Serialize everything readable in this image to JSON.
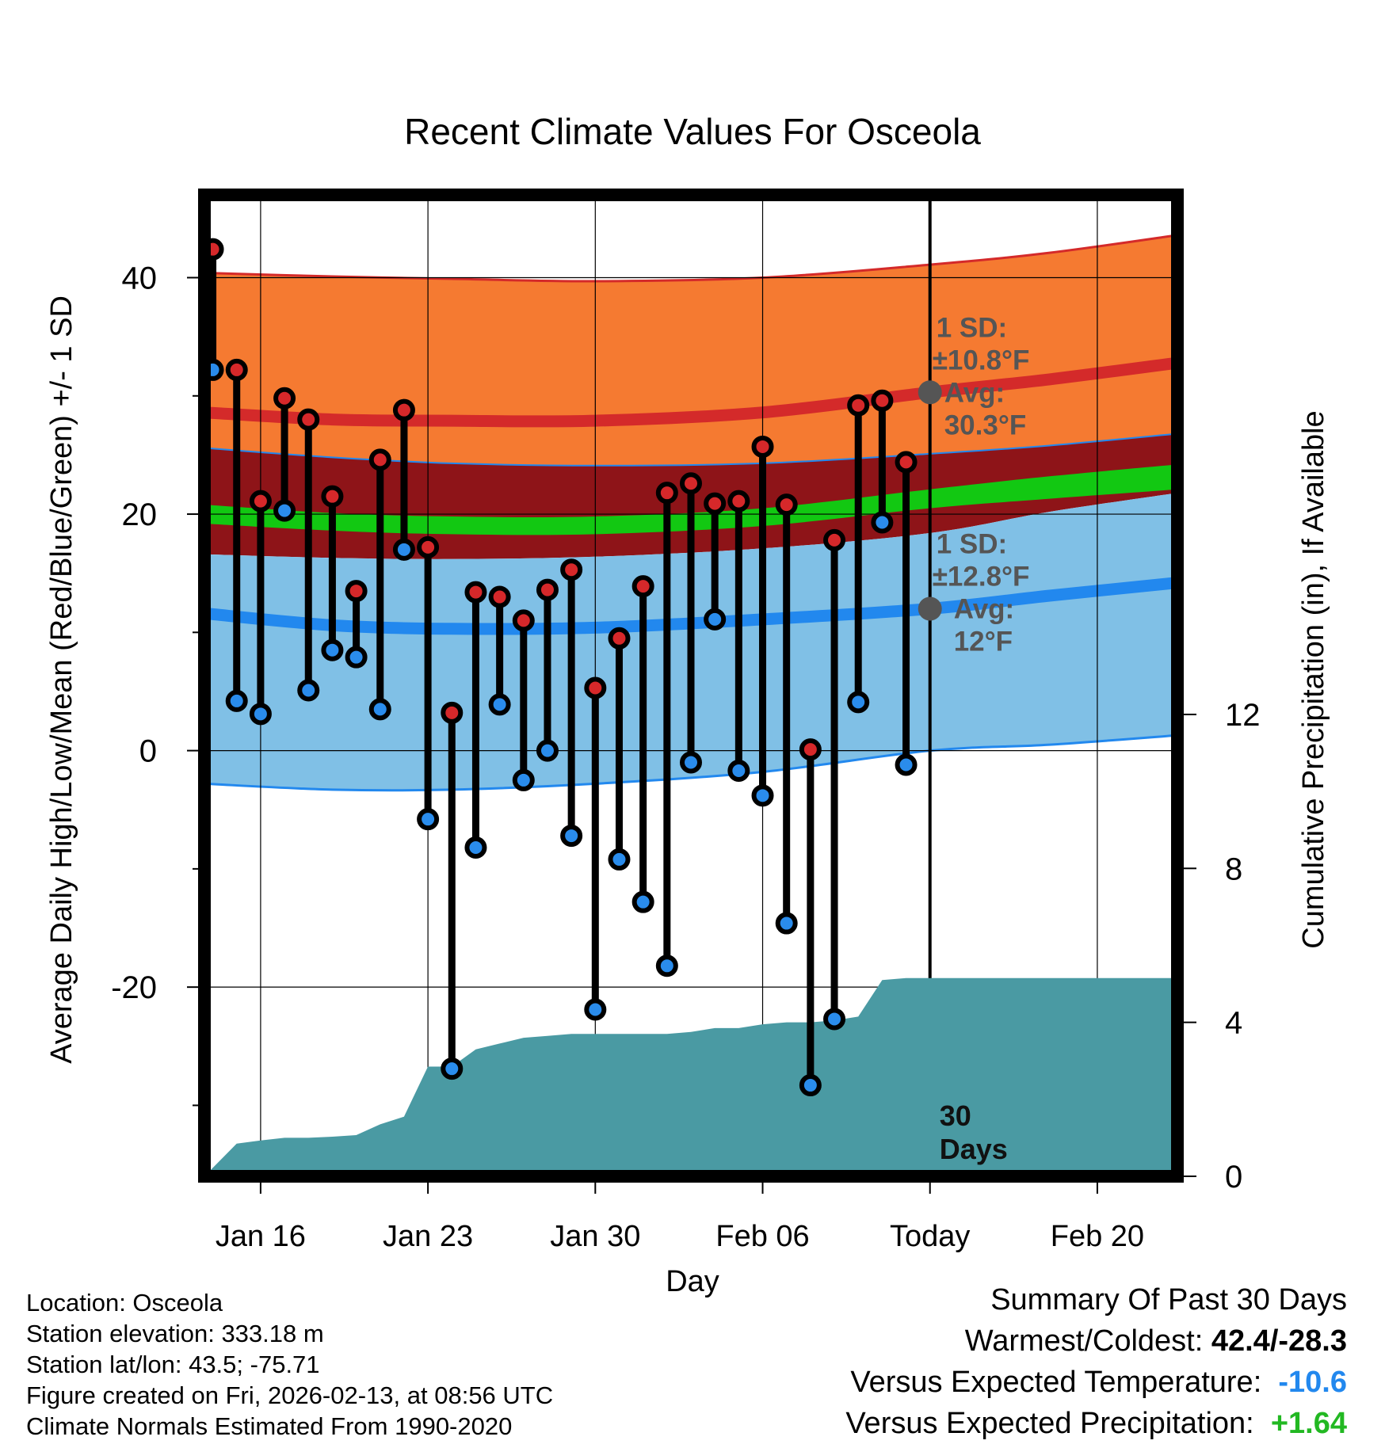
{
  "chart_data": {
    "type": "line",
    "title": "Recent Climate Values For Osceola",
    "xlabel": "Day",
    "ylabel": "Average Daily High/Low/Mean (Red/Blue/Green) +/- 1 SD",
    "y2label": "Cumulative Precipitation (in), If Available",
    "xlim": [
      -2.35,
      38.35
    ],
    "ylim": [
      -36,
      47
    ],
    "y2lim": [
      0,
      25.5
    ],
    "x_ticks": [
      {
        "x": 0,
        "label": "Jan 16"
      },
      {
        "x": 7,
        "label": "Jan 23"
      },
      {
        "x": 14,
        "label": "Jan 30"
      },
      {
        "x": 21,
        "label": "Feb 06"
      },
      {
        "x": 28,
        "label": "Today"
      },
      {
        "x": 35,
        "label": "Feb 20"
      }
    ],
    "y_ticks": [
      -20,
      0,
      20,
      40
    ],
    "y_minor_ticks": [
      -30,
      -10,
      10,
      30
    ],
    "y2_ticks": [
      0,
      4,
      8,
      12
    ],
    "today_x": 28,
    "today_label": [
      "30",
      "Days"
    ],
    "normals_x": [
      -2.35,
      3,
      8,
      14,
      21,
      28,
      33,
      38.35
    ],
    "normal_high_plus_sd": [
      40.4,
      40.1,
      39.9,
      39.7,
      40.0,
      41.1,
      42.1,
      43.6
    ],
    "normal_high": [
      28.6,
      28.0,
      27.9,
      27.9,
      28.6,
      30.3,
      31.4,
      32.8
    ],
    "normal_high_minus_sd": [
      25.6,
      24.8,
      24.3,
      24.1,
      24.3,
      25.1,
      25.8,
      26.8
    ],
    "normal_mean_upper": [
      20.8,
      20.1,
      19.8,
      19.8,
      20.5,
      22.1,
      23.2,
      24.2
    ],
    "normal_mean_lower": [
      19.2,
      18.6,
      18.3,
      18.3,
      19.0,
      20.5,
      21.3,
      22.1
    ],
    "normal_low_plus_sd": [
      16.6,
      16.3,
      16.2,
      16.4,
      17.1,
      18.4,
      20.2,
      21.8
    ],
    "normal_low": [
      11.6,
      10.6,
      10.3,
      10.4,
      11.1,
      12.0,
      13.1,
      14.2
    ],
    "normal_low_minus_sd": [
      -2.8,
      -3.3,
      -3.3,
      -2.8,
      -1.8,
      0.0,
      0.5,
      1.3
    ],
    "daily": {
      "x": [
        -2,
        -1,
        0,
        1,
        2,
        3,
        4,
        5,
        6,
        7,
        8,
        9,
        10,
        11,
        12,
        13,
        14,
        15,
        16,
        17,
        18,
        19,
        20,
        21,
        22,
        23,
        24,
        25,
        26,
        27
      ],
      "high": [
        42.4,
        32.2,
        21.1,
        29.8,
        28.0,
        21.5,
        13.5,
        24.6,
        28.8,
        17.2,
        3.2,
        13.4,
        13.0,
        11.0,
        13.6,
        15.3,
        5.3,
        9.5,
        13.9,
        21.8,
        22.6,
        20.9,
        21.1,
        25.7,
        20.8,
        0.1,
        17.8,
        29.2,
        29.6,
        24.4
      ],
      "low": [
        32.2,
        4.2,
        3.1,
        20.3,
        5.1,
        8.5,
        7.9,
        3.5,
        17.0,
        -5.8,
        -26.9,
        -8.2,
        3.9,
        -2.5,
        0.0,
        -7.2,
        -21.9,
        -9.2,
        -12.8,
        -18.2,
        -1.0,
        11.1,
        -1.7,
        -3.8,
        -14.6,
        -28.3,
        -22.7,
        4.1,
        19.3,
        -1.2
      ]
    },
    "precip": {
      "x": [
        -2.35,
        -1,
        0,
        1,
        2,
        3,
        4,
        5,
        6,
        7,
        8,
        9,
        10,
        11,
        12,
        13,
        14,
        15,
        16,
        17,
        18,
        19,
        20,
        21,
        22,
        23,
        24,
        25,
        26,
        27,
        38.35
      ],
      "cum": [
        0.0,
        0.85,
        0.93,
        1.0,
        1.0,
        1.03,
        1.07,
        1.35,
        1.55,
        2.85,
        2.85,
        3.3,
        3.45,
        3.6,
        3.65,
        3.7,
        3.7,
        3.7,
        3.7,
        3.7,
        3.75,
        3.85,
        3.85,
        3.95,
        4.0,
        4.0,
        4.05,
        4.15,
        5.1,
        5.15,
        5.15
      ]
    },
    "annotations": {
      "high": {
        "sd_label": "1 SD:",
        "sd_value": "±10.8°F",
        "avg_label": "Avg:",
        "avg_value": "30.3°F",
        "avg": 30.3
      },
      "low": {
        "sd_label": "1 SD:",
        "sd_value": "±12.8°F",
        "avg_label": "Avg:",
        "avg_value": "12°F",
        "avg": 12.0
      }
    }
  },
  "colors": {
    "high_band": "#f57a31",
    "high_line": "#d42a2a",
    "dark_band": "#8e1418",
    "mean_band": "#12c812",
    "low_band": "#80c0e6",
    "low_line": "#2288ee",
    "precip": "#4a9aa3",
    "high_dot": "#d6282a",
    "low_dot": "#2a8cec",
    "annotation": "#555555",
    "positive": "#22b822"
  },
  "info": {
    "location": "Location: Osceola",
    "elevation": "Station elevation: 333.18 m",
    "latlon": "Station lat/lon: 43.5; -75.71",
    "created": "Figure created on Fri, 2026-02-13, at 08:56 UTC",
    "normals": "Climate Normals Estimated From 1990-2020"
  },
  "summary": {
    "title": "Summary Of Past 30 Days",
    "warmest_label": "Warmest/Coldest:",
    "warmest_value": "42.4/-28.3",
    "temp_label": "Versus Expected Temperature:",
    "temp_value": "-10.6",
    "precip_label": "Versus Expected Precipitation:",
    "precip_value": "+1.64"
  }
}
